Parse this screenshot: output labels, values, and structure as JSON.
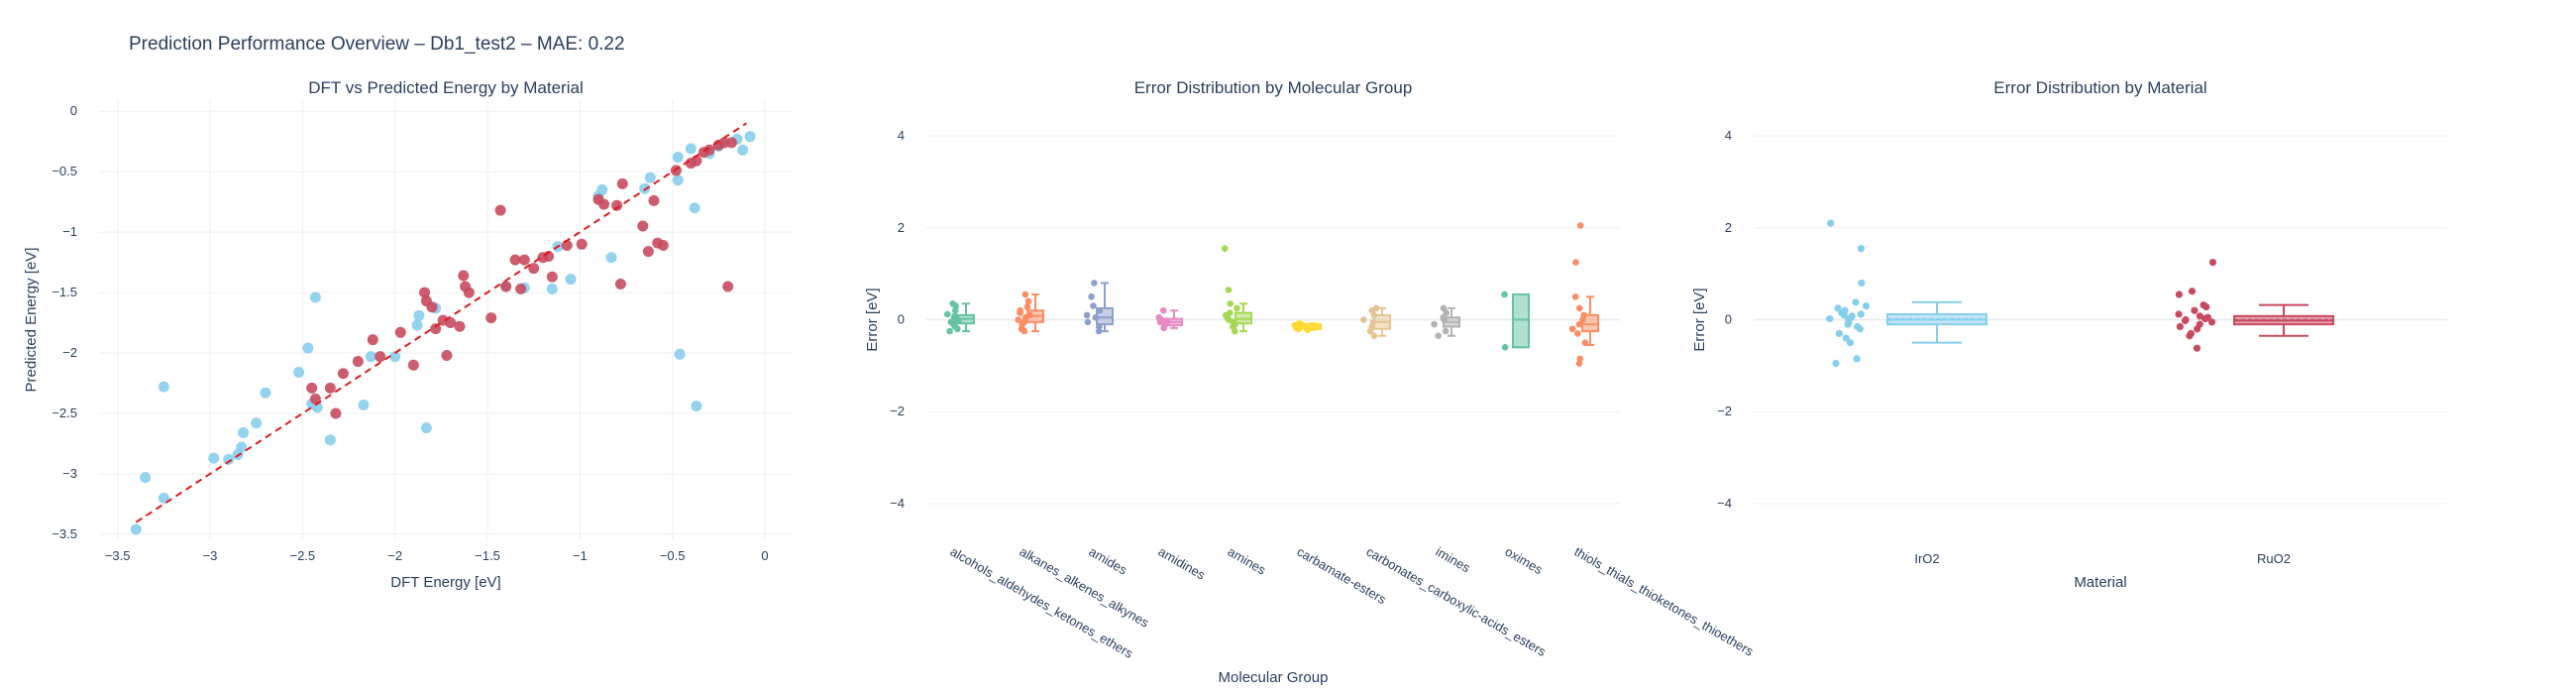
{
  "figure_title": "Prediction Performance Overview – Db1_test2 – MAE: 0.22",
  "colors": {
    "IrO2": "#87ceeb",
    "RuO2": "#c84a5e",
    "diagonal": "#e0191b"
  },
  "chart_data": [
    {
      "type": "scatter",
      "title": "DFT vs Predicted Energy by Material",
      "xlabel": "DFT Energy [eV]",
      "ylabel": "Predicted Energy [eV]",
      "xlim": [
        -3.6,
        0.15
      ],
      "ylim": [
        -3.55,
        0.1
      ],
      "xticks": [
        -3.5,
        -3,
        -2.5,
        -2,
        -1.5,
        -1,
        -0.5,
        0
      ],
      "xtick_labels": [
        "−3.5",
        "−3",
        "−2.5",
        "−2",
        "−1.5",
        "−1",
        "−0.5",
        "0"
      ],
      "yticks": [
        0,
        -0.5,
        -1,
        -1.5,
        -2,
        -2.5,
        -3,
        -3.5
      ],
      "ytick_labels": [
        "0",
        "−0.5",
        "−1",
        "−1.5",
        "−2",
        "−2.5",
        "−3",
        "−3.5"
      ],
      "diagonal": {
        "from": [
          -3.4,
          -3.4
        ],
        "to": [
          -0.1,
          -0.1
        ],
        "style": "dashed"
      },
      "grid": true,
      "series": [
        {
          "material": "IrO2",
          "points": [
            [
              -3.4,
              -3.46
            ],
            [
              -3.35,
              -3.03
            ],
            [
              -3.25,
              -3.2
            ],
            [
              -3.25,
              -2.28
            ],
            [
              -2.98,
              -2.87
            ],
            [
              -2.9,
              -2.88
            ],
            [
              -2.85,
              -2.84
            ],
            [
              -2.83,
              -2.78
            ],
            [
              -2.82,
              -2.66
            ],
            [
              -2.75,
              -2.58
            ],
            [
              -2.7,
              -2.33
            ],
            [
              -2.52,
              -2.16
            ],
            [
              -2.47,
              -1.96
            ],
            [
              -2.45,
              -2.42
            ],
            [
              -2.43,
              -1.54
            ],
            [
              -2.42,
              -2.45
            ],
            [
              -2.35,
              -2.72
            ],
            [
              -2.17,
              -2.43
            ],
            [
              -2.13,
              -2.03
            ],
            [
              -2.0,
              -2.03
            ],
            [
              -1.88,
              -1.77
            ],
            [
              -1.87,
              -1.69
            ],
            [
              -1.83,
              -2.62
            ],
            [
              -1.78,
              -1.63
            ],
            [
              -1.4,
              -1.45
            ],
            [
              -1.3,
              -1.46
            ],
            [
              -1.15,
              -1.47
            ],
            [
              -1.12,
              -1.12
            ],
            [
              -1.05,
              -1.39
            ],
            [
              -0.9,
              -0.7
            ],
            [
              -0.88,
              -0.65
            ],
            [
              -0.83,
              -1.21
            ],
            [
              -0.65,
              -0.64
            ],
            [
              -0.62,
              -0.55
            ],
            [
              -0.47,
              -0.57
            ],
            [
              -0.47,
              -0.38
            ],
            [
              -0.46,
              -2.01
            ],
            [
              -0.4,
              -0.31
            ],
            [
              -0.38,
              -0.8
            ],
            [
              -0.37,
              -2.44
            ],
            [
              -0.3,
              -0.35
            ],
            [
              -0.25,
              -0.29
            ],
            [
              -0.15,
              -0.23
            ],
            [
              -0.12,
              -0.32
            ],
            [
              -0.08,
              -0.21
            ]
          ]
        },
        {
          "material": "RuO2",
          "points": [
            [
              -2.45,
              -2.29
            ],
            [
              -2.43,
              -2.38
            ],
            [
              -2.35,
              -2.29
            ],
            [
              -2.32,
              -2.5
            ],
            [
              -2.28,
              -2.17
            ],
            [
              -2.2,
              -2.07
            ],
            [
              -2.12,
              -1.89
            ],
            [
              -2.08,
              -2.03
            ],
            [
              -1.97,
              -1.83
            ],
            [
              -1.9,
              -2.1
            ],
            [
              -1.84,
              -1.5
            ],
            [
              -1.83,
              -1.57
            ],
            [
              -1.8,
              -1.62
            ],
            [
              -1.78,
              -1.8
            ],
            [
              -1.74,
              -1.73
            ],
            [
              -1.72,
              -2.02
            ],
            [
              -1.7,
              -1.75
            ],
            [
              -1.65,
              -1.78
            ],
            [
              -1.63,
              -1.36
            ],
            [
              -1.62,
              -1.45
            ],
            [
              -1.6,
              -1.5
            ],
            [
              -1.48,
              -1.71
            ],
            [
              -1.43,
              -0.82
            ],
            [
              -1.4,
              -1.45
            ],
            [
              -1.35,
              -1.23
            ],
            [
              -1.32,
              -1.47
            ],
            [
              -1.3,
              -1.23
            ],
            [
              -1.25,
              -1.3
            ],
            [
              -1.2,
              -1.21
            ],
            [
              -1.17,
              -1.2
            ],
            [
              -1.15,
              -1.37
            ],
            [
              -1.07,
              -1.11
            ],
            [
              -0.99,
              -1.1
            ],
            [
              -0.9,
              -0.73
            ],
            [
              -0.87,
              -0.77
            ],
            [
              -0.8,
              -0.78
            ],
            [
              -0.78,
              -1.43
            ],
            [
              -0.77,
              -0.6
            ],
            [
              -0.66,
              -0.95
            ],
            [
              -0.63,
              -1.16
            ],
            [
              -0.6,
              -0.74
            ],
            [
              -0.58,
              -1.09
            ],
            [
              -0.55,
              -1.11
            ],
            [
              -0.48,
              -0.49
            ],
            [
              -0.4,
              -0.43
            ],
            [
              -0.37,
              -0.41
            ],
            [
              -0.33,
              -0.34
            ],
            [
              -0.3,
              -0.32
            ],
            [
              -0.25,
              -0.28
            ],
            [
              -0.22,
              -0.26
            ],
            [
              -0.2,
              -1.45
            ],
            [
              -0.18,
              -0.26
            ]
          ]
        }
      ]
    },
    {
      "type": "box",
      "title": "Error Distribution by Molecular Group",
      "xlabel": "Molecular Group",
      "ylabel": "Error [eV]",
      "ylim": [
        -4.8,
        4.8
      ],
      "yticks": [
        4,
        2,
        0,
        -2,
        -4
      ],
      "ytick_labels": [
        "4",
        "2",
        "0",
        "−2",
        "−4"
      ],
      "grid": true,
      "groups": [
        {
          "name": "alcohols_aldehydes_ketones_ethers",
          "color": "#66c2a5",
          "q1": -0.08,
          "median": 0.02,
          "q3": 0.1,
          "lower": -0.25,
          "upper": 0.35,
          "points": [
            -0.25,
            -0.2,
            -0.15,
            -0.1,
            -0.05,
            -0.02,
            0.0,
            0.03,
            0.05,
            0.08,
            0.12,
            0.2,
            0.3,
            0.35
          ]
        },
        {
          "name": "alkanes_alkenes_alkynes",
          "color": "#fc8d62",
          "q1": -0.05,
          "median": 0.08,
          "q3": 0.2,
          "lower": -0.25,
          "upper": 0.55,
          "points": [
            -0.25,
            -0.2,
            -0.1,
            -0.05,
            0.0,
            0.05,
            0.1,
            0.15,
            0.2,
            0.28,
            0.4,
            0.55
          ]
        },
        {
          "name": "amides",
          "color": "#8da0cb",
          "q1": -0.1,
          "median": 0.05,
          "q3": 0.25,
          "lower": -0.25,
          "upper": 0.8,
          "points": [
            -0.25,
            -0.15,
            -0.05,
            0.05,
            0.1,
            0.2,
            0.3,
            0.5,
            0.8
          ]
        },
        {
          "name": "amidines",
          "color": "#e78ac3",
          "q1": -0.12,
          "median": -0.05,
          "q3": 0.02,
          "lower": -0.18,
          "upper": 0.2,
          "points": [
            -0.18,
            -0.12,
            -0.08,
            -0.05,
            -0.02,
            0.0,
            0.05,
            0.2
          ]
        },
        {
          "name": "amines",
          "color": "#a6d854",
          "q1": -0.08,
          "median": 0.02,
          "q3": 0.15,
          "lower": -0.25,
          "upper": 0.35,
          "points": [
            -0.25,
            -0.15,
            -0.1,
            -0.05,
            0.0,
            0.05,
            0.1,
            0.15,
            0.25,
            0.35,
            0.65,
            1.55
          ]
        },
        {
          "name": "carbamate-esters",
          "color": "#ffd92f",
          "q1": -0.2,
          "median": -0.15,
          "q3": -0.1,
          "lower": -0.22,
          "upper": -0.08,
          "points": [
            -0.22,
            -0.2,
            -0.18,
            -0.15,
            -0.12,
            -0.1,
            -0.08
          ]
        },
        {
          "name": "carbonates_carboxylic-acids_esters",
          "color": "#e5c494",
          "q1": -0.2,
          "median": -0.05,
          "q3": 0.1,
          "lower": -0.35,
          "upper": 0.25,
          "points": [
            -0.35,
            -0.25,
            -0.15,
            -0.05,
            0.0,
            0.1,
            0.2,
            0.25
          ]
        },
        {
          "name": "imines",
          "color": "#b3b3b3",
          "q1": -0.15,
          "median": -0.05,
          "q3": 0.05,
          "lower": -0.35,
          "upper": 0.25,
          "points": [
            -0.35,
            -0.25,
            -0.1,
            0.0,
            0.05,
            0.15,
            0.25
          ]
        },
        {
          "name": "oximes",
          "color": "#66c2a5",
          "q1": -0.6,
          "median": 0.0,
          "q3": 0.55,
          "lower": -0.6,
          "upper": 0.55,
          "points": [
            -0.6,
            0.55
          ]
        },
        {
          "name": "thiols_thials_thioketones_thioethers",
          "color": "#fc8d62",
          "q1": -0.25,
          "median": -0.1,
          "q3": 0.1,
          "lower": -0.55,
          "upper": 0.5,
          "points": [
            -0.95,
            -0.85,
            -0.5,
            -0.3,
            -0.2,
            -0.1,
            0.0,
            0.1,
            0.25,
            0.5,
            1.25,
            2.05
          ]
        }
      ]
    },
    {
      "type": "box",
      "title": "Error Distribution by Material",
      "xlabel": "Material",
      "ylabel": "Error [eV]",
      "ylim": [
        -4.8,
        4.8
      ],
      "yticks": [
        4,
        2,
        0,
        -2,
        -4
      ],
      "ytick_labels": [
        "4",
        "2",
        "0",
        "−2",
        "−4"
      ],
      "grid": true,
      "groups": [
        {
          "name": "IrO2",
          "color": "#87ceeb",
          "q1": -0.1,
          "median": 0.0,
          "q3": 0.12,
          "mean": 0.02,
          "lower": -0.5,
          "upper": 0.38,
          "points": [
            -0.95,
            -0.85,
            -0.5,
            -0.4,
            -0.3,
            -0.2,
            -0.15,
            -0.1,
            -0.05,
            0.0,
            0.02,
            0.05,
            0.08,
            0.1,
            0.12,
            0.15,
            0.2,
            0.25,
            0.3,
            0.38,
            0.8,
            1.55,
            2.1
          ]
        },
        {
          "name": "RuO2",
          "color": "#c84a5e",
          "q1": -0.1,
          "median": -0.02,
          "q3": 0.08,
          "mean": 0.0,
          "lower": -0.35,
          "upper": 0.32,
          "points": [
            -0.62,
            -0.35,
            -0.3,
            -0.2,
            -0.15,
            -0.1,
            -0.05,
            -0.02,
            0.0,
            0.02,
            0.05,
            0.08,
            0.12,
            0.2,
            0.28,
            0.32,
            0.55,
            0.62,
            1.25
          ]
        }
      ]
    }
  ]
}
